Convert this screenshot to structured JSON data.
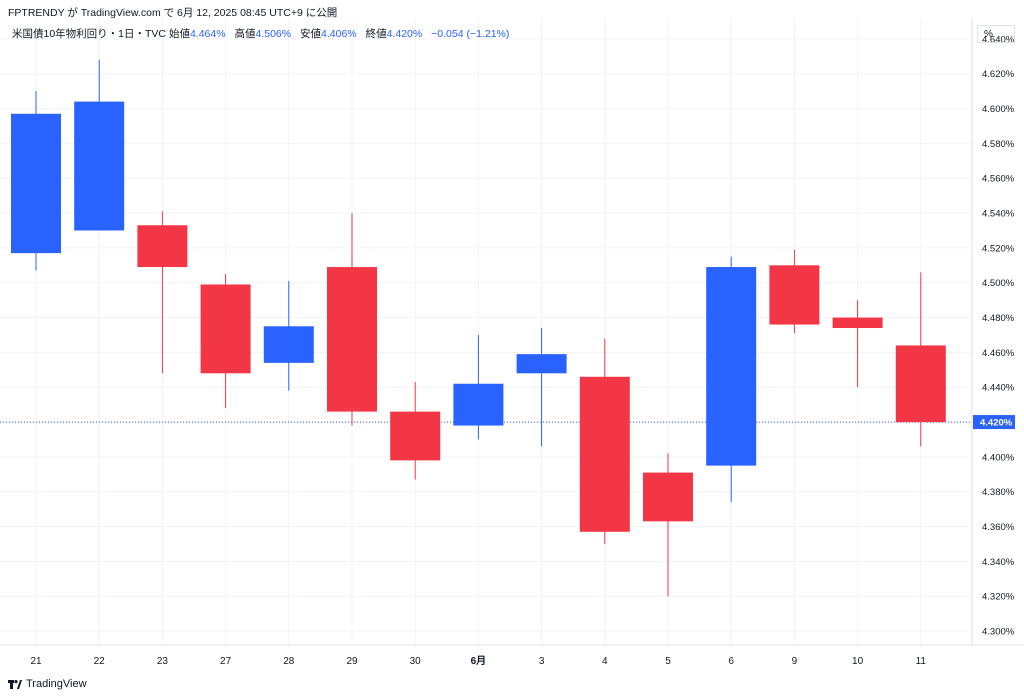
{
  "header": {
    "publisher_line": "FPTRENDY が TradingView.com で 6月 12, 2025 08:45 UTC+9 に公開"
  },
  "legend": {
    "symbol": "米国債10年物利回り・1日・TVC",
    "open_label": "始値",
    "open_value": "4.464%",
    "high_label": "高値",
    "high_value": "4.506%",
    "low_label": "安値",
    "low_value": "4.406%",
    "close_label": "終値",
    "close_value": "4.420%",
    "change": "−0.054 (−1.21%)"
  },
  "price_scale_unit": "%",
  "last_price_label": "4.420%",
  "footer": {
    "brand": "TradingView",
    "logo_icon": "tradingview-logo-icon"
  },
  "colors": {
    "up": "#2962ff",
    "down": "#f23645",
    "grid": "#f0f3fa",
    "last_price_line": "#2962ff"
  },
  "chart_data": {
    "type": "candlestick",
    "ylim": [
      4.292,
      4.652
    ],
    "yticks": [
      "4.640%",
      "4.620%",
      "4.600%",
      "4.580%",
      "4.560%",
      "4.540%",
      "4.520%",
      "4.500%",
      "4.480%",
      "4.460%",
      "4.440%",
      "4.420%",
      "4.400%",
      "4.380%",
      "4.360%",
      "4.340%",
      "4.320%",
      "4.300%"
    ],
    "ytick_values": [
      4.64,
      4.62,
      4.6,
      4.58,
      4.56,
      4.54,
      4.52,
      4.5,
      4.48,
      4.46,
      4.44,
      4.42,
      4.4,
      4.38,
      4.36,
      4.34,
      4.32,
      4.3
    ],
    "categories": [
      "21",
      "22",
      "23",
      "27",
      "28",
      "29",
      "30",
      "6月",
      "3",
      "4",
      "5",
      "6",
      "9",
      "10",
      "11"
    ],
    "open": [
      4.517,
      4.53,
      4.533,
      4.499,
      4.454,
      4.509,
      4.426,
      4.418,
      4.448,
      4.446,
      4.391,
      4.395,
      4.51,
      4.48,
      4.464
    ],
    "high": [
      4.61,
      4.628,
      4.541,
      4.505,
      4.501,
      4.54,
      4.443,
      4.47,
      4.474,
      4.468,
      4.402,
      4.515,
      4.519,
      4.49,
      4.506
    ],
    "low": [
      4.507,
      4.53,
      4.448,
      4.428,
      4.438,
      4.418,
      4.387,
      4.41,
      4.406,
      4.35,
      4.32,
      4.374,
      4.471,
      4.44,
      4.406
    ],
    "close": [
      4.597,
      4.604,
      4.509,
      4.448,
      4.475,
      4.426,
      4.398,
      4.442,
      4.459,
      4.357,
      4.363,
      4.509,
      4.476,
      4.474,
      4.42
    ],
    "last_price": 4.42,
    "grid": true
  }
}
